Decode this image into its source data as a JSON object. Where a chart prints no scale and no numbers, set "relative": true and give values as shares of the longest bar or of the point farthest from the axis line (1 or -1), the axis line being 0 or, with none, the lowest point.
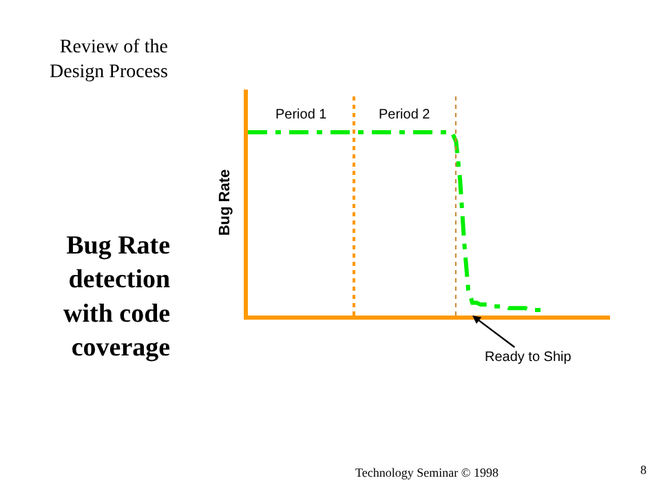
{
  "chart_data": {
    "type": "line",
    "relative": true,
    "title": "Bug Rate detection with code coverage",
    "subtitle": "Review of the Design Process",
    "ylabel": "Bug Rate",
    "categories": [
      null,
      null,
      null,
      null,
      null,
      null,
      null,
      null,
      null,
      null,
      null,
      null,
      null,
      null,
      null,
      null,
      null,
      null,
      null,
      null,
      null,
      null,
      null,
      null,
      null,
      null,
      null,
      null,
      null,
      null,
      null,
      null,
      null,
      null,
      null,
      null,
      null,
      null,
      null,
      null,
      null,
      null,
      null,
      null,
      null,
      null,
      null,
      null,
      null,
      null,
      null,
      null,
      null,
      null,
      null,
      null,
      null,
      null,
      null,
      null,
      null,
      null,
      null,
      null,
      null,
      null,
      null,
      null,
      null,
      null,
      null,
      null,
      null,
      null,
      null,
      null,
      null,
      null,
      null,
      null,
      null,
      null,
      null,
      null,
      null,
      null,
      null,
      null
    ],
    "series": [
      {
        "color": "#00ee00",
        "values": [
          1,
          1,
          1,
          1,
          1,
          1,
          1,
          1,
          1,
          1,
          1,
          1,
          1,
          1,
          1,
          1,
          1,
          1,
          1,
          1,
          1,
          1,
          1,
          1,
          1,
          1,
          1,
          1,
          1,
          1,
          1,
          1,
          1,
          1,
          1,
          1,
          1,
          1,
          1,
          1,
          1,
          1,
          1,
          1,
          1,
          1,
          1,
          1,
          1,
          1,
          1,
          0.95,
          0.74,
          0.4,
          0.14,
          0.07,
          0.07,
          0.06,
          0.06,
          0.06,
          0.05,
          0.05,
          0.05,
          0.05,
          0.04,
          0.04,
          0.04,
          0.04,
          0.04,
          0.03,
          0.03,
          0.03,
          0.03,
          0.03,
          null,
          null,
          null,
          null,
          null,
          null,
          null,
          null,
          null,
          null,
          null,
          null,
          null,
          null
        ]
      }
    ],
    "line_style": "dashed",
    "marker": "none",
    "legend": false,
    "annotations": [
      "Period 1",
      "Period 2",
      "Ready to Ship",
      "Technology Seminar © 1998",
      "8"
    ]
  }
}
